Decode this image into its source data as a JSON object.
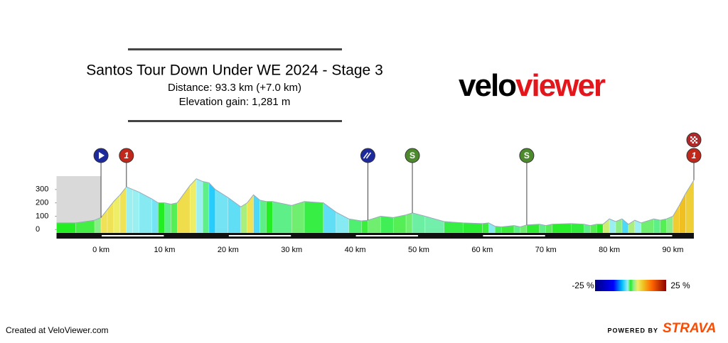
{
  "chart_data": {
    "type": "area",
    "title": "Santos Tour Down Under WE 2024 - Stage 3",
    "distance": "Distance: 93.3 km (+7.0 km)",
    "elevation_gain": "Elevation gain: 1,281 m",
    "x": [
      -7,
      -4,
      -1,
      0,
      1,
      2,
      3,
      4,
      5,
      6,
      8,
      9,
      10,
      11,
      12,
      14,
      15,
      16,
      17,
      18,
      20,
      22,
      23,
      24,
      25,
      26,
      27,
      30,
      32,
      35,
      37,
      39,
      41,
      42,
      44,
      46,
      48,
      49,
      51,
      54,
      57,
      60,
      61,
      62,
      63,
      65,
      66,
      67,
      69,
      70,
      71,
      74,
      76,
      77,
      78,
      79,
      80,
      81,
      82,
      83,
      84,
      85,
      87,
      88,
      89,
      90,
      91,
      92,
      93.3
    ],
    "values": [
      50,
      50,
      70,
      90,
      150,
      210,
      260,
      320,
      300,
      280,
      230,
      200,
      200,
      190,
      200,
      330,
      380,
      360,
      350,
      300,
      240,
      170,
      200,
      260,
      220,
      210,
      210,
      180,
      210,
      200,
      130,
      80,
      65,
      70,
      100,
      90,
      110,
      125,
      100,
      60,
      50,
      45,
      50,
      25,
      20,
      30,
      20,
      35,
      40,
      30,
      40,
      45,
      40,
      30,
      40,
      40,
      80,
      60,
      80,
      40,
      70,
      50,
      80,
      70,
      80,
      100,
      180,
      270,
      370
    ],
    "xlim": [
      -7,
      93.3
    ],
    "ylim": [
      -25,
      400
    ],
    "xticks": [
      {
        "value": 0,
        "label": "0 km"
      },
      {
        "value": 10,
        "label": "10 km"
      },
      {
        "value": 20,
        "label": "20 km"
      },
      {
        "value": 30,
        "label": "30 km"
      },
      {
        "value": 40,
        "label": "40 km"
      },
      {
        "value": 50,
        "label": "50 km"
      },
      {
        "value": 60,
        "label": "60 km"
      },
      {
        "value": 70,
        "label": "70 km"
      },
      {
        "value": 80,
        "label": "80 km"
      },
      {
        "value": 90,
        "label": "90 km"
      }
    ],
    "yticks": [
      0,
      100,
      200,
      300
    ],
    "markers": [
      {
        "km": 0,
        "kind": "start"
      },
      {
        "km": 4,
        "kind": "climb",
        "label": "1"
      },
      {
        "km": 42,
        "kind": "feed"
      },
      {
        "km": 49,
        "kind": "sprint",
        "label": "S"
      },
      {
        "km": 67,
        "kind": "sprint",
        "label": "S"
      },
      {
        "km": 93.3,
        "kind": "climb",
        "label": "1"
      },
      {
        "km": 93.3,
        "kind": "finish"
      }
    ],
    "legend": {
      "min": {
        "value": -25,
        "label": "-25 %"
      },
      "max": {
        "value": 25,
        "label": "25 %"
      }
    }
  },
  "logo": [
    "velo",
    "viewer"
  ],
  "footer": {
    "credit": "Created at VeloViewer.com",
    "powered_by": "POWERED BY",
    "brand": "STRAVA"
  }
}
